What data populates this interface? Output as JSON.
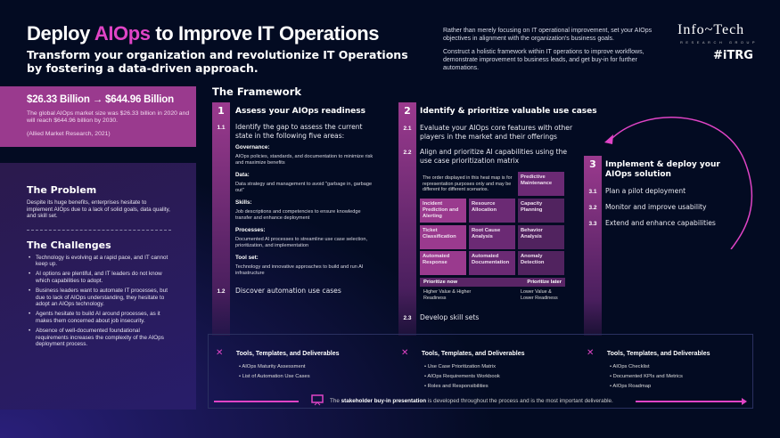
{
  "header": {
    "title_pre": "Deploy ",
    "title_accent": "AIOps",
    "title_post": " to Improve IT Operations",
    "subtitle": "Transform your organization and revolutionize IT Operations by fostering a data-driven approach.",
    "intro_1": "Rather than merely focusing on IT operational improvement, set your AIOps objectives in alignment with the organization's business goals.",
    "intro_2": "Construct a holistic framework within IT operations to improve workflows, demonstrate improvement to business leads, and get buy-in for further automations.",
    "logo_main": "Info~Tech",
    "logo_sub": "RESEARCH GROUP",
    "logo_tag": "#iTRG"
  },
  "stat": {
    "headline": "$26.33 Billion → $644.96 Billion",
    "text": "The global AIOps market size was $26.33 billion in 2020 and will reach $644.96 billion by 2030.",
    "source": "(Allied Market Research, 2021)"
  },
  "problem": {
    "title": "The Problem",
    "text": "Despite its huge benefits, enterprises hesitate to implement AIOps due to a lack of solid goals, data quality, and skill set."
  },
  "challenges": {
    "title": "The Challenges",
    "items": [
      "Technology is evolving at a rapid pace, and IT cannot keep up.",
      "AI options are plentiful, and IT leaders do not know which capabilities to adopt.",
      "Business leaders want to automate IT processes, but due to lack of AIOps understanding, they hesitate to adopt an AIOps technology.",
      "Agents hesitate to build AI around processes, as it makes them concerned about job insecurity.",
      "Absence of well-documented foundational requirements increases the complexity of the AIOps deployment process."
    ]
  },
  "framework": {
    "title": "The Framework",
    "step1": {
      "num": "1",
      "title": "Assess your AIOps readiness",
      "s1_num": "1.1",
      "s1": "Identify the gap to assess the current state in the following five areas:",
      "areas": [
        {
          "label": "Governance:",
          "desc": "AIOps policies, standards, and documentation to minimize risk and maximize benefits"
        },
        {
          "label": "Data:",
          "desc": "Data strategy and management to avoid \"garbage in, garbage out\""
        },
        {
          "label": "Skills:",
          "desc": "Job descriptions and competencies to ensure knowledge transfer and enhance deployment"
        },
        {
          "label": "Processes:",
          "desc": "Documented AI processes to streamline use case selection, prioritization, and implementation"
        },
        {
          "label": "Tool set:",
          "desc": "Technology and innovative approaches to build and run AI infrastructure"
        }
      ],
      "s2_num": "1.2",
      "s2": "Discover automation use cases"
    },
    "step2": {
      "num": "2",
      "title": "Identify & prioritize valuable use cases",
      "s1_num": "2.1",
      "s1": "Evaluate your AIOps core features with other players in the market and their offerings",
      "s2_num": "2.2",
      "s2": "Align and prioritize AI capabilities using the use case prioritization matrix",
      "s3_num": "2.3",
      "s3": "Develop skill sets",
      "matrix_note": "The order displayed in this heat map is for representation purposes only and may be different for different scenarios.",
      "cells": [
        "Predictive Maintenance",
        "Incident Prediction and Alerting",
        "Resource Allocation",
        "Capacity Planning",
        "Ticket Classification",
        "Root Cause Analysis",
        "Behavior Analysis",
        "Automated Response",
        "Automated Documentation",
        "Anomaly Detection"
      ],
      "prioritize_now": "Prioritize now",
      "prioritize_later": "Prioritize later",
      "now_note": "Higher Value & Higher Readiness",
      "later_note": "Lower Value & Lower Readiness"
    },
    "step3": {
      "num": "3",
      "title": "Implement & deploy your AIOps solution",
      "items": [
        {
          "num": "3.1",
          "text": "Plan a pilot deployment"
        },
        {
          "num": "3.2",
          "text": "Monitor and improve usability"
        },
        {
          "num": "3.3",
          "text": "Extend and enhance capabilities"
        }
      ]
    }
  },
  "tools": {
    "title": "Tools, Templates, and Deliverables",
    "col1": [
      "AIOps Maturity Assessment",
      "List of Automation Use Cases"
    ],
    "col2": [
      "Use Case Prioritization Matrix",
      "AIOps Requirements Workbook",
      "Roles and Responsibilities"
    ],
    "col3": [
      "AIOps Checklist",
      "Documented KPIs and Metrics",
      "AIOps Roadmap"
    ]
  },
  "footer": {
    "pre": "The ",
    "bold": "stakeholder buy-in presentation",
    "post": " is developed throughout the process and is the most important deliverable."
  },
  "colors": {
    "accent": "#e044c6",
    "background": "#030b22",
    "stat_box": "#9a3a8e"
  }
}
